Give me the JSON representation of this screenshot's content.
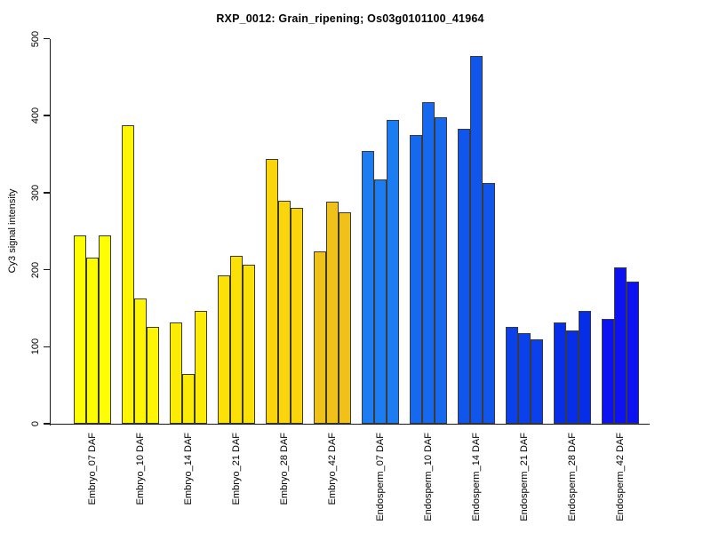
{
  "figure": {
    "background": "#FFFFFF"
  },
  "chart_data": {
    "type": "bar",
    "title": "RXP_0012: Grain_ripening; Os03g0101100_41964",
    "xlabel": "",
    "ylabel": "Cy3 signal intensity",
    "ylim": [
      0,
      500
    ],
    "yticks": [
      0,
      100,
      200,
      300,
      400,
      500
    ],
    "grid": false,
    "legend": false,
    "bars_per_group": 3,
    "bar_border_color": "#3A3A3A",
    "groups": [
      {
        "label": "Embryo_07 DAF",
        "color": "#FEFE02",
        "values": [
          245,
          216,
          244
        ]
      },
      {
        "label": "Embryo_10 DAF",
        "color": "#FDF503",
        "values": [
          388,
          163,
          126
        ]
      },
      {
        "label": "Embryo_14 DAF",
        "color": "#FCEC05",
        "values": [
          131,
          65,
          146
        ]
      },
      {
        "label": "Embryo_21 DAF",
        "color": "#FBE107",
        "values": [
          193,
          218,
          206
        ]
      },
      {
        "label": "Embryo_28 DAF",
        "color": "#FAD50C",
        "values": [
          344,
          289,
          280
        ]
      },
      {
        "label": "Embryo_42 DAF",
        "color": "#F0C219",
        "values": [
          224,
          288,
          275
        ]
      },
      {
        "label": "Endosperm_07 DAF",
        "color": "#1C7CF2",
        "values": [
          354,
          317,
          395
        ]
      },
      {
        "label": "Endosperm_10 DAF",
        "color": "#1669EF",
        "values": [
          375,
          417,
          398
        ]
      },
      {
        "label": "Endosperm_14 DAF",
        "color": "#1056EC",
        "values": [
          383,
          478,
          313
        ]
      },
      {
        "label": "Endosperm_21 DAF",
        "color": "#0B41EA",
        "values": [
          126,
          118,
          109
        ]
      },
      {
        "label": "Endosperm_28 DAF",
        "color": "#062DE8",
        "values": [
          131,
          121,
          147
        ]
      },
      {
        "label": "Endosperm_42 DAF",
        "color": "#0D12F0",
        "values": [
          136,
          203,
          185
        ]
      }
    ]
  }
}
